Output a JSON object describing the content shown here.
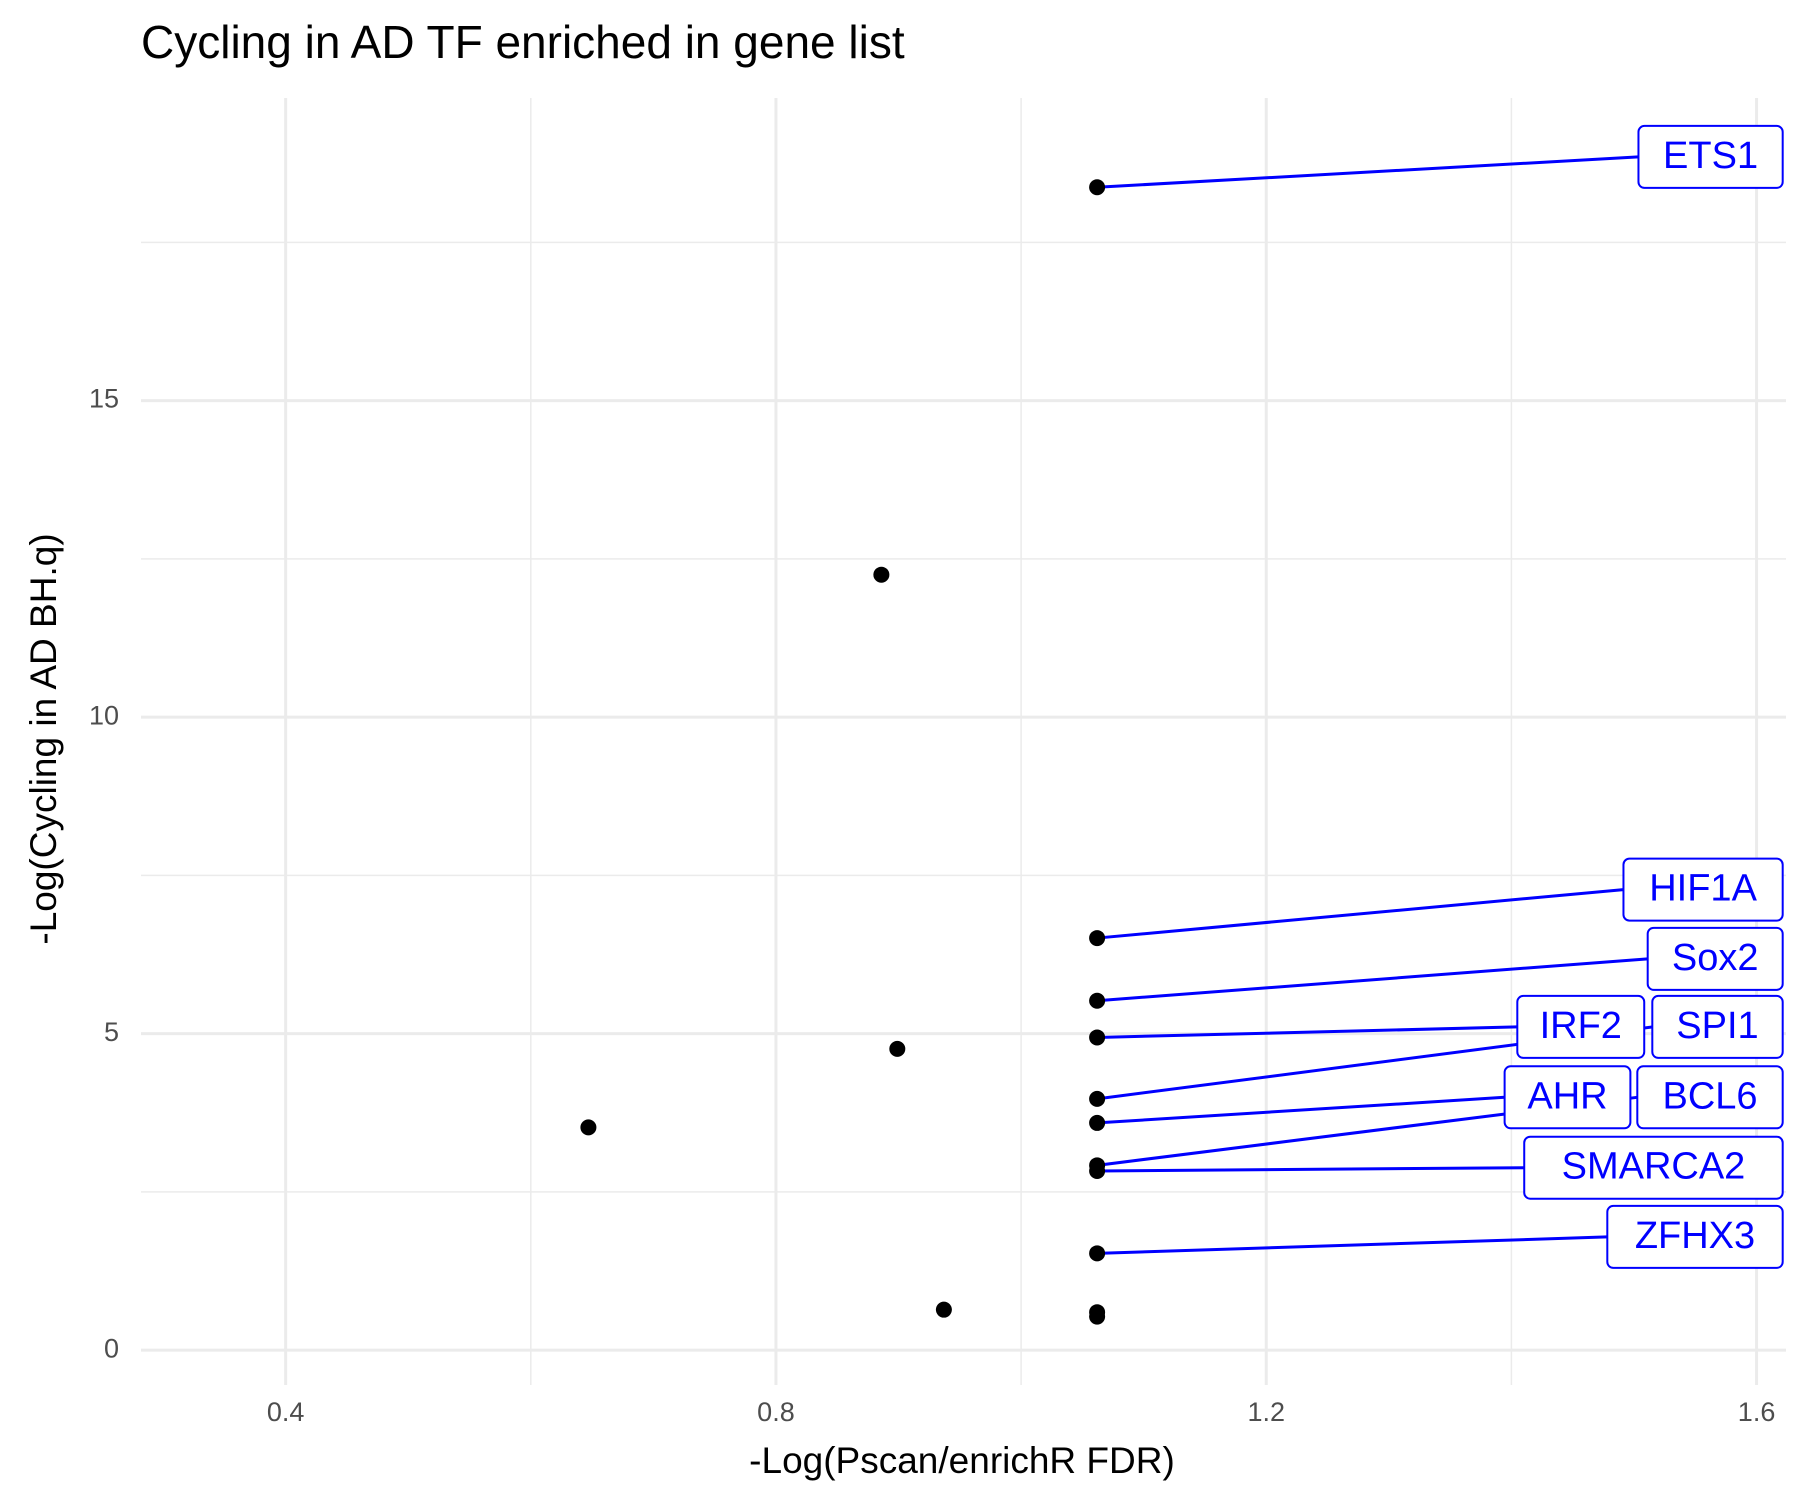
{
  "chart_data": {
    "type": "scatter",
    "title": "Cycling in AD TF enriched in gene list",
    "xlabel": "-Log(Pscan/enrichR FDR)",
    "ylabel": "-Log(Cycling in AD BH.q)",
    "x": [
      1.062,
      0.886,
      1.062,
      1.062,
      1.062,
      0.899,
      1.062,
      0.647,
      1.062,
      1.062,
      1.062,
      1.062,
      0.937,
      1.062,
      1.062
    ],
    "y": [
      18.37,
      12.25,
      6.51,
      5.52,
      4.94,
      4.76,
      3.97,
      3.52,
      3.59,
      2.92,
      2.83,
      1.53,
      0.64,
      0.6,
      0.53
    ],
    "labels": [
      "ETS1",
      null,
      "HIF1A",
      "Sox2",
      "IRF2",
      null,
      "SPI1",
      null,
      "AHR",
      "BCL6",
      "SMARCA2",
      "ZFHX3",
      null,
      null,
      null
    ],
    "color": "#000000",
    "label_color": "#0000ff",
    "xlim": [
      0.282,
      1.624
    ],
    "ylim": [
      -0.55,
      19.78
    ],
    "xticks": [
      0.4,
      0.8,
      1.2,
      1.6
    ],
    "yticks": [
      0,
      5,
      10,
      15
    ],
    "xticks_minor": [
      0.6,
      1.0,
      1.4
    ],
    "yticks_minor": [
      2.5,
      7.5,
      12.5,
      17.5
    ],
    "grid": true
  }
}
